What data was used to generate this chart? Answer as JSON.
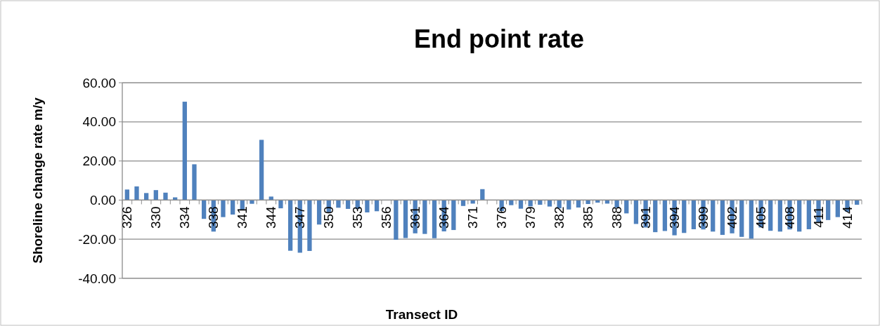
{
  "chart_data": {
    "type": "bar",
    "title": "End point rate",
    "xlabel": "Transect ID",
    "ylabel": "Shoreline change rate m/y",
    "categories": [
      "326",
      null,
      null,
      "330",
      null,
      null,
      "334",
      null,
      null,
      "338",
      null,
      null,
      "341",
      null,
      null,
      "344",
      null,
      null,
      "347",
      null,
      null,
      "350",
      null,
      null,
      "353",
      null,
      null,
      "356",
      null,
      null,
      "361",
      null,
      null,
      "364",
      null,
      null,
      "371",
      null,
      null,
      "376",
      null,
      null,
      "379",
      null,
      null,
      "382",
      null,
      null,
      "385",
      null,
      null,
      "388",
      null,
      null,
      "391",
      null,
      null,
      "394",
      null,
      null,
      "399",
      null,
      null,
      "402",
      null,
      null,
      "405",
      null,
      null,
      "408",
      null,
      null,
      "411",
      null,
      null,
      "414",
      null
    ],
    "values": [
      5.4,
      7.0,
      3.6,
      5.1,
      3.8,
      1.4,
      50.3,
      18.3,
      -9.6,
      -16.1,
      -8.7,
      -7.4,
      -4.9,
      -1.9,
      30.8,
      1.8,
      -4.2,
      -25.9,
      -26.9,
      -26.0,
      -12.5,
      -6.2,
      -3.9,
      -4.5,
      -4.5,
      -6.3,
      -5.7,
      null,
      -20.3,
      -19.4,
      -17,
      -17.3,
      -19.5,
      -16,
      -15.3,
      -3.0,
      -1.8,
      5.6,
      null,
      -5.6,
      -2.6,
      -4.4,
      -3.2,
      -2.4,
      -3.3,
      -4.2,
      -4.8,
      -3.8,
      -2.0,
      -1.3,
      -1.8,
      -3.9,
      -6.8,
      -12.2,
      -14,
      -16.4,
      -15.8,
      -18,
      -16.8,
      -14.9,
      -15,
      -16.1,
      -17.8,
      -17,
      -18.8,
      -19.7,
      -14,
      -15.7,
      -16.1,
      -15,
      -16.1,
      -14.9,
      -11.5,
      -10.2,
      -8.7,
      -6.0,
      -2.4
    ],
    "color": "#4f81bd",
    "ylim": [
      -40,
      60
    ],
    "yticks": [
      {
        "value": -40,
        "label": "-40.00"
      },
      {
        "value": -20,
        "label": "-20.00"
      },
      {
        "value": 0,
        "label": "0.00"
      },
      {
        "value": 20,
        "label": "20.00"
      },
      {
        "value": 40,
        "label": "40.00"
      },
      {
        "value": 60,
        "label": "60.00"
      }
    ],
    "grid": "y"
  }
}
